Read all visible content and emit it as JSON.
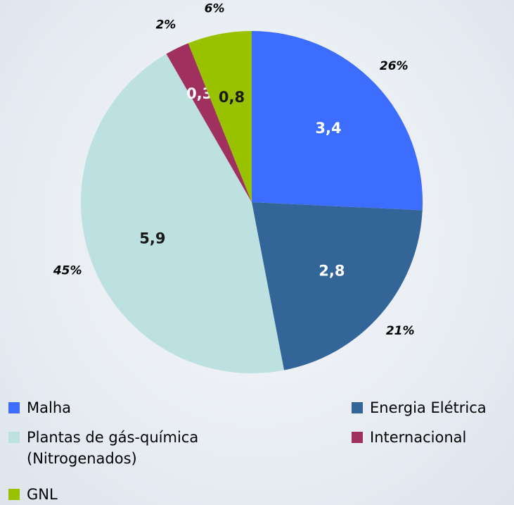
{
  "chart_data": {
    "type": "pie",
    "categories": [
      "Malha",
      "Energia Elétrica",
      "Plantas de gás-química (Nitrogenados)",
      "Internacional",
      "GNL"
    ],
    "values": [
      3.4,
      2.8,
      5.9,
      0.3,
      0.8
    ],
    "value_labels": [
      "3,4",
      "2,8",
      "5,9",
      "0,3",
      "0,8"
    ],
    "percent_labels": [
      "26%",
      "21%",
      "45%",
      "2%",
      "6%"
    ],
    "colors": [
      "#3d6dfe",
      "#336598",
      "#bde1e1",
      "#a0305e",
      "#98c200"
    ],
    "start_angle": 0,
    "direction": "clockwise"
  }
}
